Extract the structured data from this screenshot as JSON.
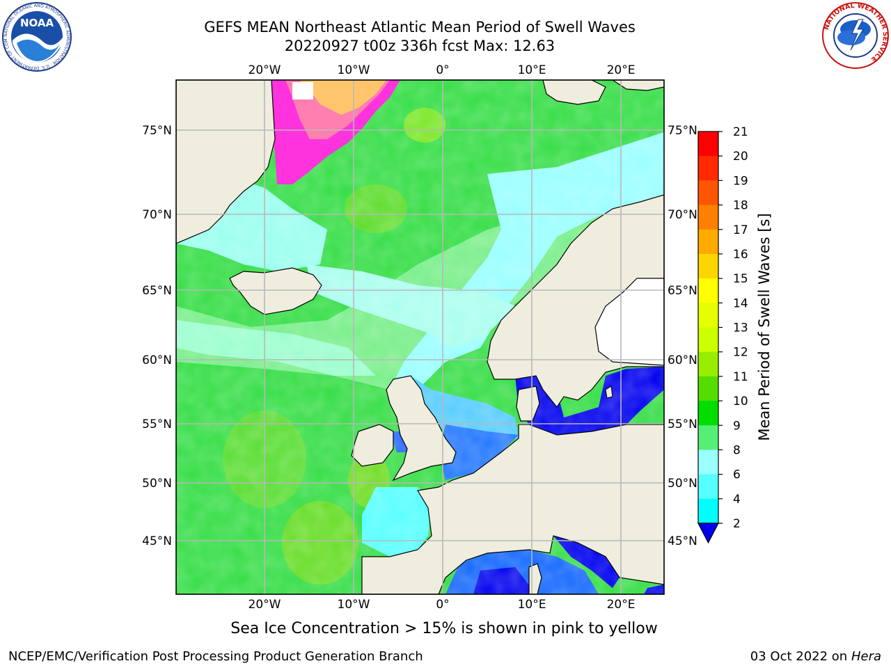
{
  "title_line1": "GEFS MEAN Northeast Atlantic Mean Period of Swell Waves",
  "title_line2": "20220927 t00z 336h fcst   Max: 12.63",
  "footer_note": "Sea Ice Concentration > 15% is shown in pink to yellow",
  "credit": "NCEP/EMC/Verification Post Processing Product Generation Branch",
  "date_text": "03 Oct 2022 on ",
  "date_machine": "Hera",
  "noaa_logo_text": "NOAA",
  "noaa_ring_text": "NATIONAL OCEANIC AND ATMOSPHERIC ADMINISTRATION · U.S. DEPARTMENT OF COMMERCE",
  "nws_ring_text": "NATIONAL WEATHER SERVICE",
  "lon_labels": [
    "20°W",
    "10°W",
    "0°",
    "10°E",
    "20°E"
  ],
  "lat_labels": [
    "75°N",
    "70°N",
    "65°N",
    "60°N",
    "55°N",
    "50°N",
    "45°N"
  ],
  "colorbar": {
    "label": "Mean Period of Swell Waves [s]",
    "ticks": [
      "21",
      "20",
      "19",
      "18",
      "17",
      "16",
      "15",
      "14",
      "13",
      "12",
      "11",
      "10",
      "9",
      "8",
      "6",
      "4",
      "2"
    ],
    "colors": [
      "#ff0000",
      "#ff2a00",
      "#ff5500",
      "#ff8000",
      "#ffaa00",
      "#ffd500",
      "#ffff00",
      "#e6ff00",
      "#ccff00",
      "#99ee00",
      "#55dd00",
      "#00dd00",
      "#55ee77",
      "#99ffff",
      "#55ffff",
      "#00ffff",
      "#0077ff",
      "#0000ee"
    ],
    "colors_meaning": "top-to-bottom bins, last is the under-range arrow"
  },
  "colors": {
    "land": "#efedde",
    "grid": "#b8b8b8",
    "ice_pink": "#ff33dd",
    "ice_yellow": "#ffee55"
  }
}
